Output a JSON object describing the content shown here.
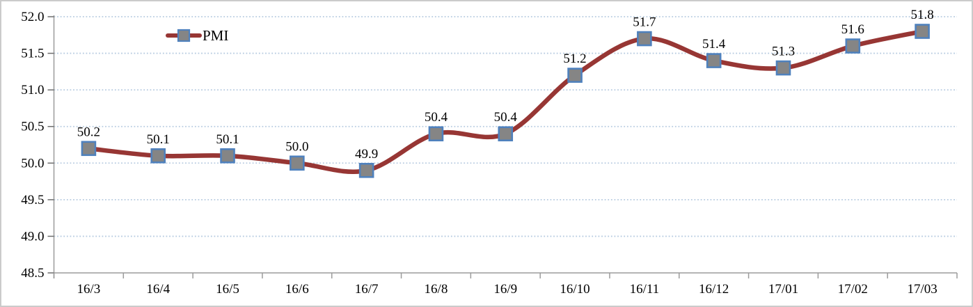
{
  "chart_data": {
    "type": "line",
    "title": "",
    "xlabel": "",
    "ylabel": "",
    "categories": [
      "16/3",
      "16/4",
      "16/5",
      "16/6",
      "16/7",
      "16/8",
      "16/9",
      "16/10",
      "16/11",
      "16/12",
      "17/01",
      "17/02",
      "17/03"
    ],
    "series": [
      {
        "name": "PMI",
        "values": [
          50.2,
          50.1,
          50.1,
          50.0,
          49.9,
          50.4,
          50.4,
          51.2,
          51.7,
          51.4,
          51.3,
          51.6,
          51.8
        ]
      }
    ],
    "data_labels": [
      "50.2",
      "50.1",
      "50.1",
      "50.0",
      "49.9",
      "50.4",
      "50.4",
      "51.2",
      "51.7",
      "51.4",
      "51.3",
      "51.6",
      "51.8"
    ],
    "ylim": [
      48.5,
      52.0
    ],
    "y_step": 0.5,
    "y_tick_labels": [
      "48.5",
      "49.0",
      "49.5",
      "50.0",
      "50.5",
      "51.0",
      "51.5",
      "52.0"
    ],
    "grid": "horizontal-dotted",
    "line_smooth": true,
    "legend": {
      "label": "PMI",
      "position": "inset-top-left"
    },
    "colors": {
      "line": "#973634",
      "marker_fill": "#858585",
      "marker_border": "#4f81bd",
      "gridline": "#b7cbe0",
      "axis": "#9b9b9b",
      "tick": "#6e6e6e",
      "text": "#000000",
      "frame_border": "#cbcbcb",
      "background": "#ffffff"
    }
  }
}
